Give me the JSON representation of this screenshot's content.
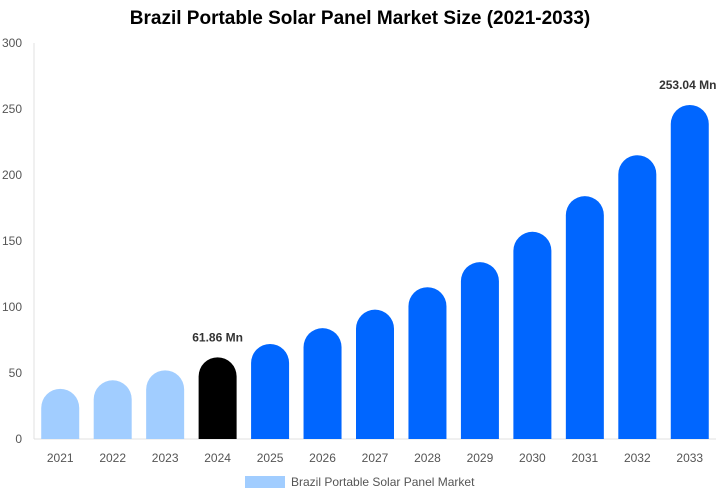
{
  "chart_data": {
    "type": "bar",
    "title": "Brazil Portable Solar Panel Market Size (2021-2033)",
    "categories": [
      "2021",
      "2022",
      "2023",
      "2024",
      "2025",
      "2026",
      "2027",
      "2028",
      "2029",
      "2030",
      "2031",
      "2032",
      "2033"
    ],
    "series": [
      {
        "name": "Brazil Portable Solar Panel Market",
        "values": [
          38,
          44.5,
          52,
          61.86,
          72,
          84,
          98,
          115,
          134,
          157,
          184,
          215,
          253.04
        ]
      }
    ],
    "bar_colors": [
      "#a1cdff",
      "#a1cdff",
      "#a1cdff",
      "#000000",
      "#0066ff",
      "#0066ff",
      "#0066ff",
      "#0066ff",
      "#0066ff",
      "#0066ff",
      "#0066ff",
      "#0066ff",
      "#0066ff"
    ],
    "data_labels": {
      "3": "61.86 Mn",
      "12": "253.04 Mn"
    },
    "ylim": [
      0,
      300
    ],
    "yticks": [
      0,
      50,
      100,
      150,
      200,
      250,
      300
    ],
    "grid": false,
    "legend_position": "bottom",
    "legend_color": "#a1cdff"
  }
}
